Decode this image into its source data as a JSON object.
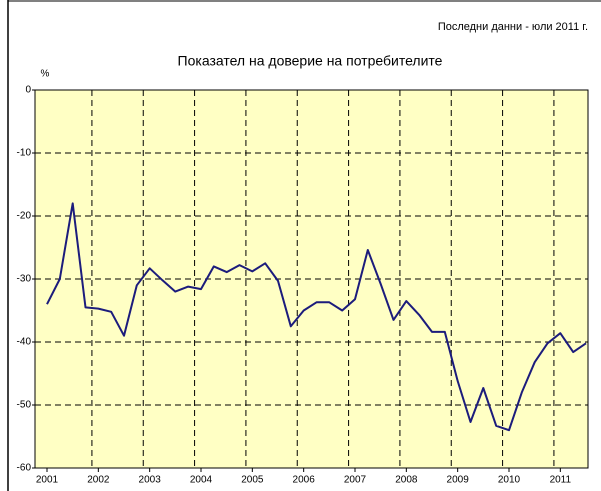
{
  "chart_data": {
    "type": "line",
    "note": "Последни данни - юли 2011 г.",
    "title": "Показател  на доверие на потребителите",
    "y_label": "%",
    "categories": [
      "2001",
      null,
      null,
      null,
      "2002",
      null,
      null,
      null,
      "2003",
      null,
      null,
      null,
      "2004",
      null,
      null,
      null,
      "2005",
      null,
      null,
      null,
      "2006",
      null,
      null,
      null,
      "2007",
      null,
      null,
      null,
      "2008",
      null,
      null,
      null,
      "2009",
      null,
      null,
      null,
      "2010",
      null,
      null,
      null,
      "2011",
      null,
      null
    ],
    "series": [
      {
        "name": "Показател на доверие на потребителите",
        "color": "#1c1c7c",
        "values": [
          -34,
          -30,
          -18,
          -34.5,
          -34.7,
          -35.2,
          -39,
          -31,
          -28.3,
          -30.2,
          -32,
          -31.2,
          -31.6,
          -28,
          -28.9,
          -27.8,
          -28.8,
          -27.5,
          -30.3,
          -37.5,
          -35,
          -33.7,
          -33.7,
          -35,
          -33.2,
          -25.4,
          -30.8,
          -36.5,
          -33.5,
          -35.7,
          -38.4,
          -38.4,
          -46.2,
          -52.7,
          -47.3,
          -53.3,
          -54,
          -48,
          -43.2,
          -40.2,
          -38.6,
          -41.6,
          -40.2
        ]
      }
    ],
    "ylim": [
      -60,
      0
    ],
    "yticks": [
      0,
      -10,
      -20,
      -30,
      -40,
      -50,
      -60
    ],
    "grid": true,
    "plot_background": "#ffffc4"
  }
}
